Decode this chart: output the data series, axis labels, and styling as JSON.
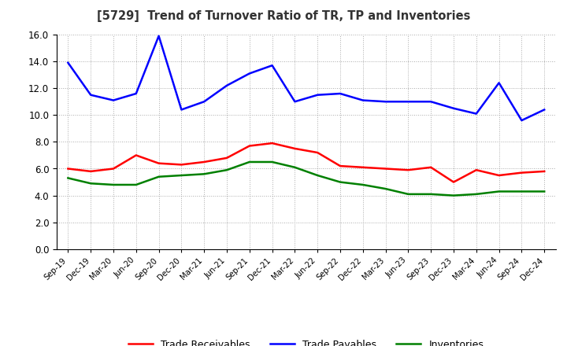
{
  "title": "[5729]  Trend of Turnover Ratio of TR, TP and Inventories",
  "x_labels": [
    "Sep-19",
    "Dec-19",
    "Mar-20",
    "Jun-20",
    "Sep-20",
    "Dec-20",
    "Mar-21",
    "Jun-21",
    "Sep-21",
    "Dec-21",
    "Mar-22",
    "Jun-22",
    "Sep-22",
    "Dec-22",
    "Mar-23",
    "Jun-23",
    "Sep-23",
    "Dec-23",
    "Mar-24",
    "Jun-24",
    "Sep-24",
    "Dec-24"
  ],
  "trade_receivables": [
    6.0,
    5.8,
    6.0,
    7.0,
    6.4,
    6.3,
    6.5,
    6.8,
    7.7,
    7.9,
    7.5,
    7.2,
    6.2,
    6.1,
    6.0,
    5.9,
    6.1,
    5.0,
    5.9,
    5.5,
    5.7,
    5.8
  ],
  "trade_payables": [
    13.9,
    11.5,
    11.1,
    11.6,
    15.9,
    10.4,
    11.0,
    12.2,
    13.1,
    13.7,
    11.0,
    11.5,
    11.6,
    11.1,
    11.0,
    11.0,
    11.0,
    10.5,
    10.1,
    12.4,
    9.6,
    10.4
  ],
  "inventories": [
    5.3,
    4.9,
    4.8,
    4.8,
    5.4,
    5.5,
    5.6,
    5.9,
    6.5,
    6.5,
    6.1,
    5.5,
    5.0,
    4.8,
    4.5,
    4.1,
    4.1,
    4.0,
    4.1,
    4.3,
    4.3,
    4.3
  ],
  "ylim": [
    0.0,
    16.0
  ],
  "yticks": [
    0.0,
    2.0,
    4.0,
    6.0,
    8.0,
    10.0,
    12.0,
    14.0,
    16.0
  ],
  "line_colors": {
    "trade_receivables": "#ff0000",
    "trade_payables": "#0000ff",
    "inventories": "#008000"
  },
  "line_width": 1.8,
  "background_color": "#ffffff",
  "grid_color": "#aaaaaa",
  "legend_labels": [
    "Trade Receivables",
    "Trade Payables",
    "Inventories"
  ]
}
